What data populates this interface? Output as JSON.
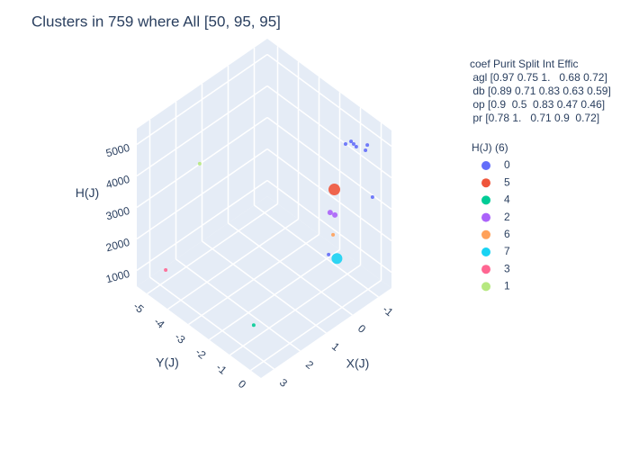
{
  "chart_data": {
    "type": "scatter3d",
    "title": "Clusters in 759 where All [50, 95, 95]",
    "x_label": "X(J)",
    "y_label": "Y(J)",
    "z_label": "H(J)",
    "xlim": [
      -1.5,
      3.5
    ],
    "ylim": [
      -5.5,
      0.5
    ],
    "zlim": [
      500,
      5500
    ],
    "xticks": [
      -1,
      0,
      1,
      2,
      3
    ],
    "yticks": [
      -5,
      -4,
      -3,
      -2,
      -1,
      0
    ],
    "zticks": [
      1000,
      2000,
      3000,
      4000,
      5000
    ],
    "grid": true,
    "annotation": [
      "coef Purit Split Int Effic",
      " agl [0.97 0.75 1.   0.68 0.72]",
      " db [0.89 0.71 0.83 0.63 0.59]",
      " op [0.9  0.5  0.83 0.47 0.46]",
      " pr [0.78 1.   0.71 0.9  0.72]"
    ],
    "legend_title": "H(J) (6)",
    "series": [
      {
        "name": "0",
        "color": "#636efa",
        "size": 3,
        "x": [
          -1.14,
          -1.24,
          -1.34,
          -0.93,
          -0.9,
          -0.97,
          -1.01,
          -0.28
        ],
        "y": [
          -1,
          -1,
          -1,
          -1,
          0,
          0,
          0.2,
          -1
        ],
        "z": [
          4630,
          4490,
          4350,
          4670,
          4970,
          5100,
          3520,
          1530
        ]
      },
      {
        "name": "5",
        "color": "#EF553B",
        "size": 12,
        "x": [
          -0.5
        ],
        "y": [
          -1
        ],
        "z": [
          3470
        ]
      },
      {
        "name": "4",
        "color": "#00cc96",
        "size": 3,
        "x": [
          2.59
        ],
        "y": [
          -1
        ],
        "z": [
          930
        ]
      },
      {
        "name": "2",
        "color": "#ab63fa",
        "size": 5,
        "x": [
          -0.34,
          -0.52
        ],
        "y": [
          -1,
          -1
        ],
        "z": [
          2830,
          2650
        ]
      },
      {
        "name": "6",
        "color": "#FFA15A",
        "size": 3,
        "x": [
          -0.45
        ],
        "y": [
          -1
        ],
        "z": [
          2060
        ]
      },
      {
        "name": "7",
        "color": "#19d3f3",
        "size": 11,
        "x": [
          -0.6
        ],
        "y": [
          -1
        ],
        "z": [
          1220
        ]
      },
      {
        "name": "3",
        "color": "#FF6692",
        "size": 3,
        "x": [
          2.79
        ],
        "y": [
          -5
        ],
        "z": [
          850
        ]
      },
      {
        "name": "1",
        "color": "#B6E880",
        "size": 3,
        "x": [
          2.28
        ],
        "y": [
          -4
        ],
        "z": [
          4420
        ]
      }
    ]
  }
}
